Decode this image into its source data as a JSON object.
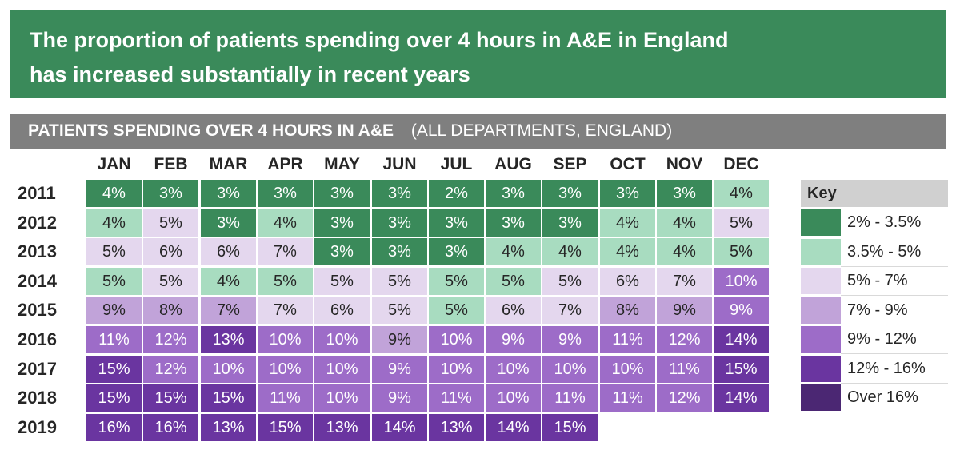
{
  "banner": {
    "line1": "The proportion of patients spending over 4 hours in A&E in England",
    "line2": "has increased substantially in recent years"
  },
  "subhead": {
    "bold": "PATIENTS SPENDING OVER 4 HOURS IN A&E",
    "light": "(ALL DEPARTMENTS, ENGLAND)"
  },
  "colors": {
    "banner": "#3a8a5a",
    "subhead": "#7f7f7f",
    "scale": [
      "#3a8a5a",
      "#a8dcc0",
      "#e4d7ee",
      "#c1a3d9",
      "#9d6cc8",
      "#6a35a0",
      "#4b2773"
    ]
  },
  "chart_data": {
    "type": "heatmap",
    "title": "PATIENTS SPENDING OVER 4 HOURS IN A&E",
    "subtitle": "(ALL DEPARTMENTS, ENGLAND)",
    "months": [
      "JAN",
      "FEB",
      "MAR",
      "APR",
      "MAY",
      "JUN",
      "JUL",
      "AUG",
      "SEP",
      "OCT",
      "NOV",
      "DEC"
    ],
    "years": [
      "2011",
      "2012",
      "2013",
      "2014",
      "2015",
      "2016",
      "2017",
      "2018",
      "2019"
    ],
    "unit": "%",
    "values": [
      [
        4,
        3,
        3,
        3,
        3,
        3,
        2,
        3,
        3,
        3,
        3,
        4
      ],
      [
        4,
        5,
        3,
        4,
        3,
        3,
        3,
        3,
        3,
        4,
        4,
        5
      ],
      [
        5,
        6,
        6,
        7,
        3,
        3,
        3,
        4,
        4,
        4,
        4,
        5
      ],
      [
        5,
        5,
        4,
        5,
        5,
        5,
        5,
        5,
        5,
        6,
        7,
        10
      ],
      [
        9,
        8,
        7,
        7,
        6,
        5,
        5,
        6,
        7,
        8,
        9,
        9
      ],
      [
        11,
        12,
        13,
        10,
        10,
        9,
        10,
        9,
        9,
        11,
        12,
        14
      ],
      [
        15,
        12,
        10,
        10,
        10,
        9,
        10,
        10,
        10,
        10,
        11,
        15
      ],
      [
        15,
        15,
        15,
        11,
        10,
        9,
        11,
        10,
        11,
        11,
        12,
        14
      ],
      [
        16,
        16,
        13,
        15,
        13,
        14,
        13,
        14,
        15,
        null,
        null,
        null
      ]
    ],
    "bins": [
      [
        0,
        0,
        0,
        0,
        0,
        0,
        0,
        0,
        0,
        0,
        0,
        1
      ],
      [
        1,
        2,
        0,
        1,
        0,
        0,
        0,
        0,
        0,
        1,
        1,
        2
      ],
      [
        2,
        2,
        2,
        2,
        0,
        0,
        0,
        1,
        1,
        1,
        1,
        1
      ],
      [
        1,
        2,
        1,
        1,
        2,
        2,
        1,
        1,
        2,
        2,
        2,
        4
      ],
      [
        3,
        3,
        3,
        2,
        2,
        2,
        1,
        2,
        2,
        3,
        3,
        4
      ],
      [
        4,
        4,
        5,
        4,
        4,
        3,
        4,
        4,
        4,
        4,
        4,
        5
      ],
      [
        5,
        4,
        4,
        4,
        4,
        4,
        4,
        4,
        4,
        4,
        4,
        5
      ],
      [
        5,
        5,
        5,
        4,
        4,
        4,
        4,
        4,
        4,
        4,
        4,
        5
      ],
      [
        5,
        5,
        5,
        5,
        5,
        5,
        5,
        5,
        5,
        null,
        null,
        null
      ]
    ],
    "legend": {
      "title": "Key",
      "entries": [
        "2% - 3.5%",
        "3.5% - 5%",
        "5% - 7%",
        "7% - 9%",
        "9% - 12%",
        "12% - 16%",
        "Over 16%"
      ]
    }
  }
}
